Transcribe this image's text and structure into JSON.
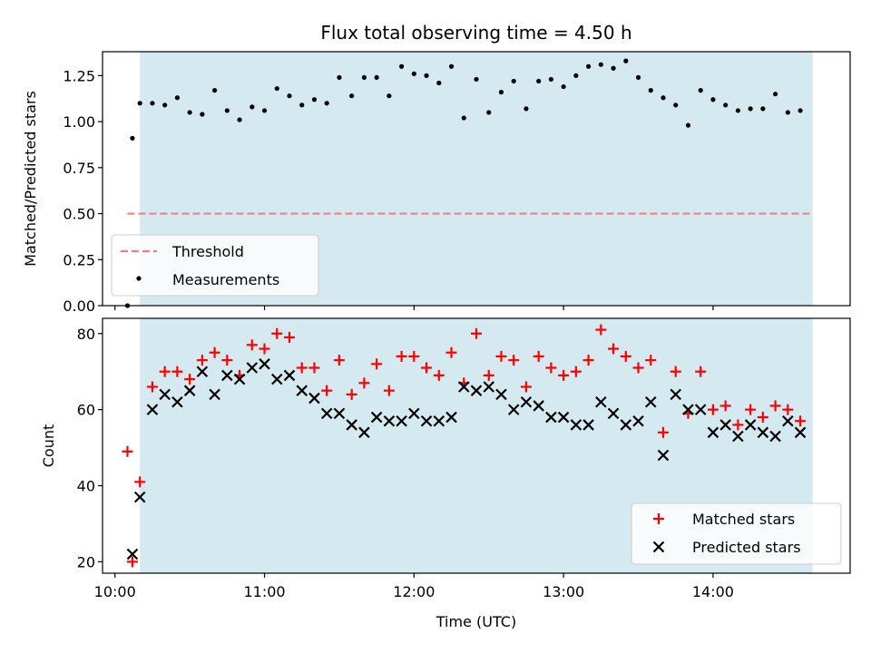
{
  "chart_data": [
    {
      "type": "scatter",
      "title": "Flux total observing time = 4.50 h",
      "xlabel": "",
      "ylabel": "Matched/Predicted stars",
      "xlim": [
        "09:55",
        "14:55"
      ],
      "ylim": [
        0,
        1.38
      ],
      "yticks": [
        "0.00",
        "0.25",
        "0.50",
        "0.75",
        "1.00",
        "1.25"
      ],
      "xticks_shown_labels": false,
      "shaded_span": {
        "x_start": "10:10",
        "x_end": "14:40",
        "color": "#d4eaf0"
      },
      "threshold": {
        "name": "Threshold",
        "y": 0.5,
        "x_start": "10:05",
        "x_end": "14:40",
        "color": "#f08080",
        "style": "dashed"
      },
      "series": [
        {
          "name": "Measurements",
          "marker": "dot",
          "color": "#000000",
          "points": [
            [
              "10:05",
              0.0
            ],
            [
              "10:07",
              0.91
            ],
            [
              "10:10",
              1.1
            ],
            [
              "10:15",
              1.1
            ],
            [
              "10:20",
              1.09
            ],
            [
              "10:25",
              1.13
            ],
            [
              "10:30",
              1.05
            ],
            [
              "10:35",
              1.04
            ],
            [
              "10:40",
              1.17
            ],
            [
              "10:45",
              1.06
            ],
            [
              "10:50",
              1.01
            ],
            [
              "10:55",
              1.08
            ],
            [
              "11:00",
              1.06
            ],
            [
              "11:05",
              1.18
            ],
            [
              "11:10",
              1.14
            ],
            [
              "11:15",
              1.09
            ],
            [
              "11:20",
              1.12
            ],
            [
              "11:25",
              1.1
            ],
            [
              "11:30",
              1.24
            ],
            [
              "11:35",
              1.14
            ],
            [
              "11:40",
              1.24
            ],
            [
              "11:45",
              1.24
            ],
            [
              "11:50",
              1.14
            ],
            [
              "11:55",
              1.3
            ],
            [
              "12:00",
              1.26
            ],
            [
              "12:05",
              1.25
            ],
            [
              "12:10",
              1.21
            ],
            [
              "12:15",
              1.3
            ],
            [
              "12:20",
              1.02
            ],
            [
              "12:25",
              1.23
            ],
            [
              "12:30",
              1.05
            ],
            [
              "12:35",
              1.16
            ],
            [
              "12:40",
              1.22
            ],
            [
              "12:45",
              1.07
            ],
            [
              "12:50",
              1.22
            ],
            [
              "12:55",
              1.23
            ],
            [
              "13:00",
              1.19
            ],
            [
              "13:05",
              1.25
            ],
            [
              "13:10",
              1.3
            ],
            [
              "13:15",
              1.31
            ],
            [
              "13:20",
              1.29
            ],
            [
              "13:25",
              1.33
            ],
            [
              "13:30",
              1.24
            ],
            [
              "13:35",
              1.17
            ],
            [
              "13:40",
              1.13
            ],
            [
              "13:45",
              1.09
            ],
            [
              "13:50",
              0.98
            ],
            [
              "13:55",
              1.17
            ],
            [
              "14:00",
              1.12
            ],
            [
              "14:05",
              1.09
            ],
            [
              "14:10",
              1.06
            ],
            [
              "14:15",
              1.07
            ],
            [
              "14:20",
              1.07
            ],
            [
              "14:25",
              1.15
            ],
            [
              "14:30",
              1.05
            ],
            [
              "14:35",
              1.06
            ]
          ]
        }
      ],
      "legend": {
        "position": "lower-left",
        "entries": [
          "Threshold",
          "Measurements"
        ]
      }
    },
    {
      "type": "scatter",
      "title": "",
      "xlabel": "Time (UTC)",
      "ylabel": "Count",
      "xlim": [
        "09:55",
        "14:55"
      ],
      "ylim": [
        17,
        84
      ],
      "yticks": [
        "20",
        "40",
        "60",
        "80"
      ],
      "xticks": [
        "10:00",
        "11:00",
        "12:00",
        "13:00",
        "14:00"
      ],
      "shaded_span": {
        "x_start": "10:10",
        "x_end": "14:40",
        "color": "#d4eaf0"
      },
      "series": [
        {
          "name": "Matched stars",
          "marker": "plus",
          "color": "#ff0000",
          "points": [
            [
              "10:05",
              49
            ],
            [
              "10:07",
              20
            ],
            [
              "10:10",
              41
            ],
            [
              "10:15",
              66
            ],
            [
              "10:20",
              70
            ],
            [
              "10:25",
              70
            ],
            [
              "10:30",
              68
            ],
            [
              "10:35",
              73
            ],
            [
              "10:40",
              75
            ],
            [
              "10:45",
              73
            ],
            [
              "10:50",
              69
            ],
            [
              "10:55",
              77
            ],
            [
              "11:00",
              76
            ],
            [
              "11:05",
              80
            ],
            [
              "11:10",
              79
            ],
            [
              "11:15",
              71
            ],
            [
              "11:20",
              71
            ],
            [
              "11:25",
              65
            ],
            [
              "11:30",
              73
            ],
            [
              "11:35",
              64
            ],
            [
              "11:40",
              67
            ],
            [
              "11:45",
              72
            ],
            [
              "11:50",
              65
            ],
            [
              "11:55",
              74
            ],
            [
              "12:00",
              74
            ],
            [
              "12:05",
              71
            ],
            [
              "12:10",
              69
            ],
            [
              "12:15",
              75
            ],
            [
              "12:20",
              67
            ],
            [
              "12:25",
              80
            ],
            [
              "12:30",
              69
            ],
            [
              "12:35",
              74
            ],
            [
              "12:40",
              73
            ],
            [
              "12:45",
              66
            ],
            [
              "12:50",
              74
            ],
            [
              "12:55",
              71
            ],
            [
              "13:00",
              69
            ],
            [
              "13:05",
              70
            ],
            [
              "13:10",
              73
            ],
            [
              "13:15",
              81
            ],
            [
              "13:20",
              76
            ],
            [
              "13:25",
              74
            ],
            [
              "13:30",
              71
            ],
            [
              "13:35",
              73
            ],
            [
              "13:40",
              54
            ],
            [
              "13:45",
              70
            ],
            [
              "13:50",
              59
            ],
            [
              "13:55",
              70
            ],
            [
              "14:00",
              60
            ],
            [
              "14:05",
              61
            ],
            [
              "14:10",
              56
            ],
            [
              "14:15",
              60
            ],
            [
              "14:20",
              58
            ],
            [
              "14:25",
              61
            ],
            [
              "14:30",
              60
            ],
            [
              "14:35",
              57
            ]
          ]
        },
        {
          "name": "Predicted stars",
          "marker": "x",
          "color": "#000000",
          "points": [
            [
              "10:07",
              22
            ],
            [
              "10:10",
              37
            ],
            [
              "10:15",
              60
            ],
            [
              "10:20",
              64
            ],
            [
              "10:25",
              62
            ],
            [
              "10:30",
              65
            ],
            [
              "10:35",
              70
            ],
            [
              "10:40",
              64
            ],
            [
              "10:45",
              69
            ],
            [
              "10:50",
              68
            ],
            [
              "10:55",
              71
            ],
            [
              "11:00",
              72
            ],
            [
              "11:05",
              68
            ],
            [
              "11:10",
              69
            ],
            [
              "11:15",
              65
            ],
            [
              "11:20",
              63
            ],
            [
              "11:25",
              59
            ],
            [
              "11:30",
              59
            ],
            [
              "11:35",
              56
            ],
            [
              "11:40",
              54
            ],
            [
              "11:45",
              58
            ],
            [
              "11:50",
              57
            ],
            [
              "11:55",
              57
            ],
            [
              "12:00",
              59
            ],
            [
              "12:05",
              57
            ],
            [
              "12:10",
              57
            ],
            [
              "12:15",
              58
            ],
            [
              "12:20",
              66
            ],
            [
              "12:25",
              65
            ],
            [
              "12:30",
              66
            ],
            [
              "12:35",
              64
            ],
            [
              "12:40",
              60
            ],
            [
              "12:45",
              62
            ],
            [
              "12:50",
              61
            ],
            [
              "12:55",
              58
            ],
            [
              "13:00",
              58
            ],
            [
              "13:05",
              56
            ],
            [
              "13:10",
              56
            ],
            [
              "13:15",
              62
            ],
            [
              "13:20",
              59
            ],
            [
              "13:25",
              56
            ],
            [
              "13:30",
              57
            ],
            [
              "13:35",
              62
            ],
            [
              "13:40",
              48
            ],
            [
              "13:45",
              64
            ],
            [
              "13:50",
              60
            ],
            [
              "13:55",
              60
            ],
            [
              "14:00",
              54
            ],
            [
              "14:05",
              56
            ],
            [
              "14:10",
              53
            ],
            [
              "14:15",
              56
            ],
            [
              "14:20",
              54
            ],
            [
              "14:25",
              53
            ],
            [
              "14:30",
              57
            ],
            [
              "14:35",
              54
            ]
          ]
        }
      ],
      "legend": {
        "position": "lower-right",
        "entries": [
          "Matched stars",
          "Predicted stars"
        ]
      }
    }
  ]
}
